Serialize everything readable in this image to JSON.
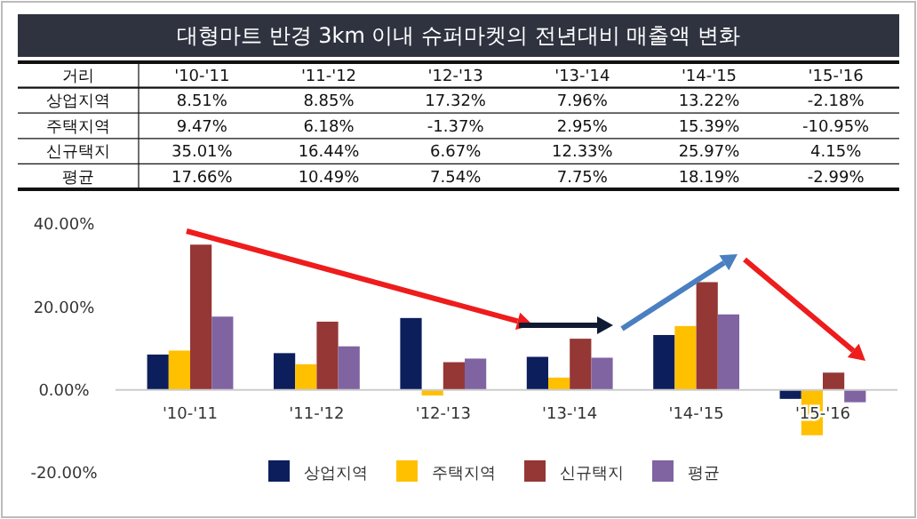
{
  "chart_data": {
    "type": "bar",
    "title": "대형마트 반경 3km 이내 슈퍼마켓의 전년대비 매출액 변화",
    "annotations": [
      "거리"
    ],
    "categories": [
      "'10-'11",
      "'11-'12",
      "'12-'13",
      "'13-'14",
      "'14-'15",
      "'15-'16"
    ],
    "series": [
      {
        "name": "상업지역",
        "color": "#0c1f5c",
        "values": [
          8.51,
          8.85,
          17.32,
          7.96,
          13.22,
          -2.18
        ],
        "value_labels": [
          "8.51%",
          "8.85%",
          "17.32%",
          "7.96%",
          "13.22%",
          "-2.18%"
        ]
      },
      {
        "name": "주택지역",
        "color": "#ffc000",
        "values": [
          9.47,
          6.18,
          -1.37,
          2.95,
          15.39,
          -10.95
        ],
        "value_labels": [
          "9.47%",
          "6.18%",
          "-1.37%",
          "2.95%",
          "15.39%",
          "-10.95%"
        ]
      },
      {
        "name": "신규택지",
        "color": "#953735",
        "values": [
          35.01,
          16.44,
          6.67,
          12.33,
          25.97,
          4.15
        ],
        "value_labels": [
          "35.01%",
          "16.44%",
          "6.67%",
          "12.33%",
          "25.97%",
          "4.15%"
        ]
      },
      {
        "name": "평균",
        "color": "#8064a2",
        "values": [
          17.66,
          10.49,
          7.54,
          7.75,
          18.19,
          -2.99
        ],
        "value_labels": [
          "17.66%",
          "10.49%",
          "7.54%",
          "7.75%",
          "18.19%",
          "-2.99%"
        ]
      }
    ],
    "ylim": [
      -20,
      40
    ],
    "yticks": [
      {
        "value": -20,
        "label": "-20.00%"
      },
      {
        "value": 0,
        "label": "0.00%"
      },
      {
        "value": 20,
        "label": "20.00%"
      },
      {
        "value": 40,
        "label": "40.00%"
      }
    ],
    "grid": false,
    "legend": "bottom"
  }
}
